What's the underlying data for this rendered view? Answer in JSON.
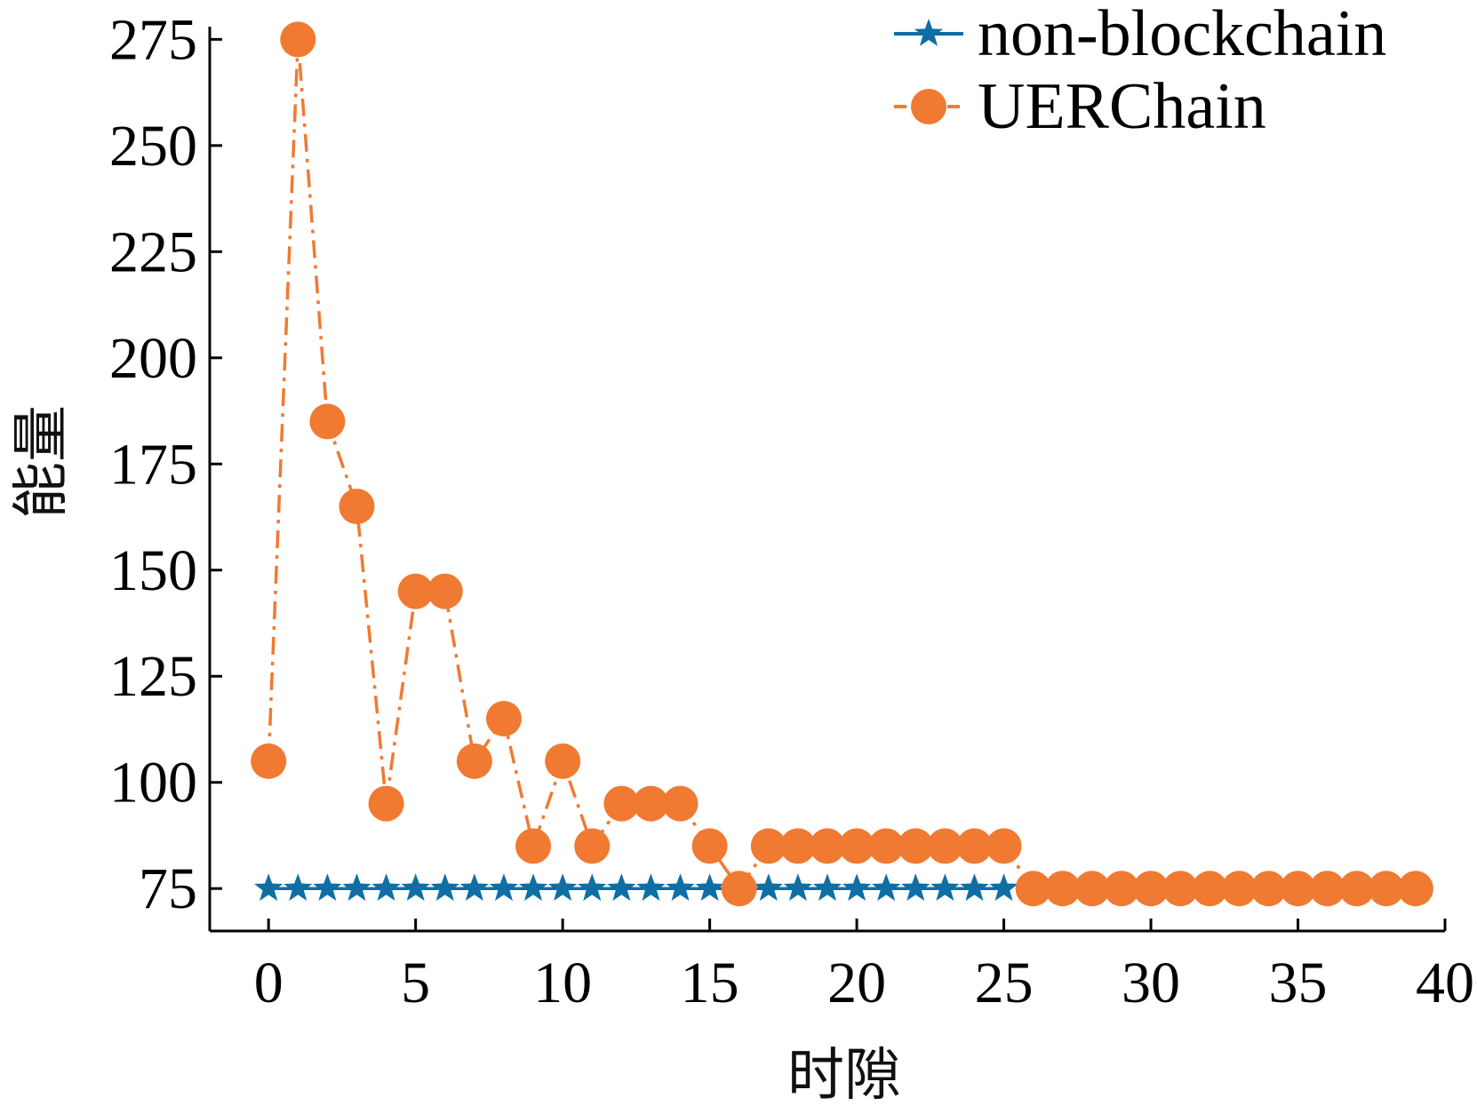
{
  "chart_data": {
    "type": "line",
    "title": "",
    "xlabel": "时隙",
    "ylabel": "能量",
    "xlim": [
      -2,
      40
    ],
    "ylim": [
      65,
      278
    ],
    "xticks": [
      0,
      5,
      10,
      15,
      20,
      25,
      30,
      35,
      40
    ],
    "yticks": [
      75,
      100,
      125,
      150,
      175,
      200,
      225,
      250,
      275
    ],
    "grid": false,
    "legend_position": "top-right",
    "series": [
      {
        "name": "non-blockchain",
        "color": "#0f6ea3",
        "marker": "star",
        "line_style": "solid",
        "x": [
          0,
          1,
          2,
          3,
          4,
          5,
          6,
          7,
          8,
          9,
          10,
          11,
          12,
          13,
          14,
          15,
          16,
          17,
          18,
          19,
          20,
          21,
          22,
          23,
          24,
          25
        ],
        "values": [
          75,
          75,
          75,
          75,
          75,
          75,
          75,
          75,
          75,
          75,
          75,
          75,
          75,
          75,
          75,
          75,
          75,
          75,
          75,
          75,
          75,
          75,
          75,
          75,
          75,
          75
        ]
      },
      {
        "name": "UERChain",
        "color": "#f07a32",
        "marker": "circle",
        "line_style": "dashdot",
        "x": [
          0,
          1,
          2,
          3,
          4,
          5,
          6,
          7,
          8,
          9,
          10,
          11,
          12,
          13,
          14,
          15,
          16,
          17,
          18,
          19,
          20,
          21,
          22,
          23,
          24,
          25,
          26,
          27,
          28,
          29,
          30,
          31,
          32,
          33,
          34,
          35,
          36,
          37,
          38,
          39
        ],
        "values": [
          105,
          275,
          185,
          165,
          95,
          145,
          145,
          105,
          115,
          85,
          105,
          85,
          95,
          95,
          95,
          85,
          75,
          85,
          85,
          85,
          85,
          85,
          85,
          85,
          85,
          85,
          75,
          75,
          75,
          75,
          75,
          75,
          75,
          75,
          75,
          75,
          75,
          75,
          75,
          75
        ]
      }
    ]
  }
}
